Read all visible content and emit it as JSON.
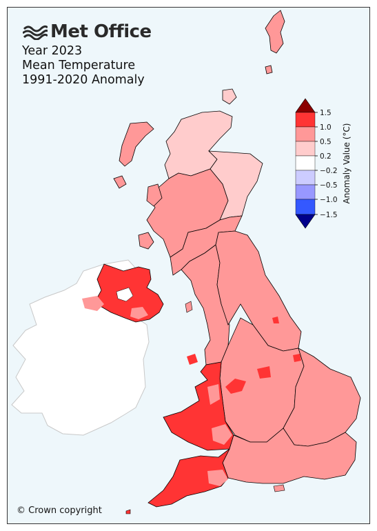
{
  "brand": {
    "logo_text": "Met Office",
    "logo_icon": "met-office-waves-icon"
  },
  "title": {
    "line1": "Year 2023",
    "line2": "Mean Temperature",
    "line3": "1991-2020 Anomaly"
  },
  "legend": {
    "label": "Anomaly Value (°C)",
    "ticks": [
      "1.5",
      "1.0",
      "0.5",
      "0.2",
      "−0.2",
      "−0.5",
      "−1.0",
      "−1.5"
    ],
    "bins": [
      {
        "range": "> 1.5",
        "color": "#8b0000"
      },
      {
        "range": "1.0 to 1.5",
        "color": "#ff3434"
      },
      {
        "range": "0.5 to 1.0",
        "color": "#ff9898"
      },
      {
        "range": "0.2 to 0.5",
        "color": "#ffcccc"
      },
      {
        "range": "-0.2 to 0.2",
        "color": "#ffffff"
      },
      {
        "range": "-0.5 to -0.2",
        "color": "#ccccff"
      },
      {
        "range": "-1.0 to -0.5",
        "color": "#9898ff"
      },
      {
        "range": "-1.5 to -1.0",
        "color": "#3458ff"
      },
      {
        "range": "< -1.5",
        "color": "#00008b"
      }
    ]
  },
  "regions": [
    {
      "name": "Northern Scotland",
      "class": "0.2 to 0.5",
      "color": "#ffcccc"
    },
    {
      "name": "Eastern Scotland",
      "class": "0.2 to 0.5",
      "color": "#ffcccc"
    },
    {
      "name": "Western Scotland",
      "class": "0.5 to 1.0",
      "color": "#ff9898"
    },
    {
      "name": "Southern Scotland",
      "class": "0.5 to 1.0",
      "color": "#ff9898"
    },
    {
      "name": "Northern Ireland",
      "class": "1.0 to 1.5",
      "color": "#ff3434"
    },
    {
      "name": "North West England",
      "class": "0.5 to 1.0",
      "color": "#ff9898"
    },
    {
      "name": "North East England",
      "class": "0.5 to 1.0",
      "color": "#ff9898"
    },
    {
      "name": "Midlands",
      "class": "0.5 to 1.0",
      "color": "#ff9898"
    },
    {
      "name": "East Anglia",
      "class": "0.5 to 1.0",
      "color": "#ff9898"
    },
    {
      "name": "Wales",
      "class": "1.0 to 1.5",
      "color": "#ff3434"
    },
    {
      "name": "South West England",
      "class": "1.0 to 1.5",
      "color": "#ff3434"
    },
    {
      "name": "South East England",
      "class": "0.5 to 1.0",
      "color": "#ff9898"
    },
    {
      "name": "Republic of Ireland",
      "class": "no data",
      "color": "#ffffff"
    }
  ],
  "copyright": "© Crown copyright"
}
